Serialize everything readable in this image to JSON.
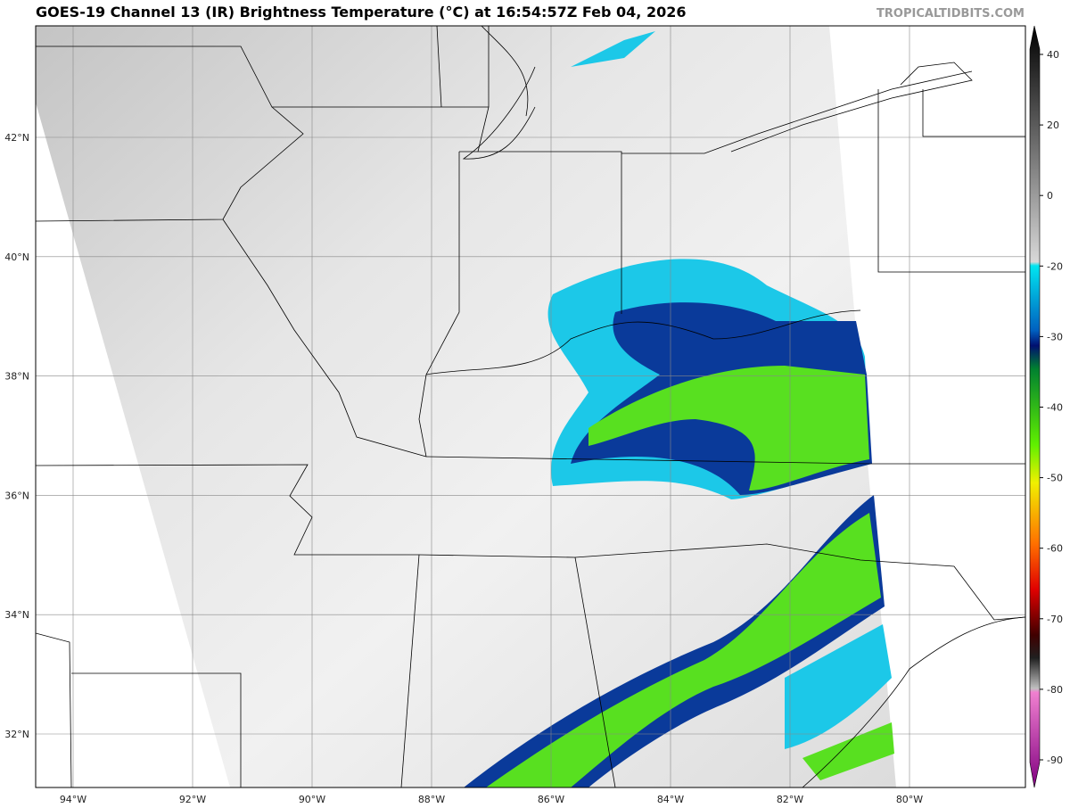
{
  "title": "GOES-19 Channel 13 (IR) Brightness Temperature (°C) at 16:54:57Z Feb 04, 2026",
  "credit": "TROPICALTIDBITS.COM",
  "map": {
    "latitude_labels": [
      "42°N",
      "40°N",
      "38°N",
      "36°N",
      "34°N",
      "32°N"
    ],
    "longitude_labels": [
      "94°W",
      "92°W",
      "90°W",
      "88°W",
      "86°W",
      "84°W",
      "82°W",
      "80°W"
    ]
  },
  "colorbar": {
    "ticks": [
      40,
      20,
      0,
      -20,
      -30,
      -40,
      -50,
      -60,
      -70,
      -80,
      -90
    ]
  }
}
